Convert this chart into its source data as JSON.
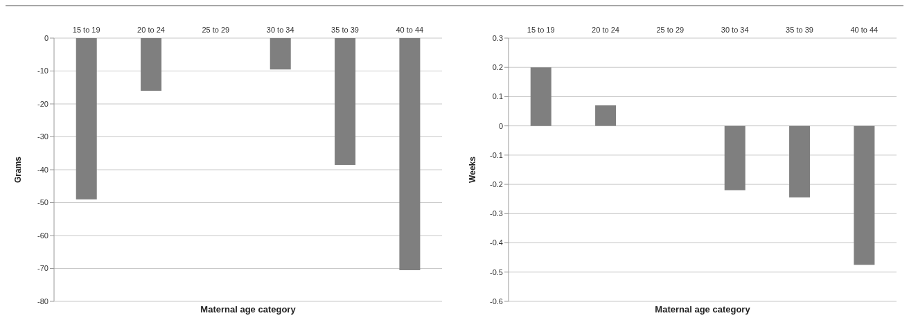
{
  "chart_data": [
    {
      "type": "bar",
      "categories": [
        "15 to 19",
        "20 to 24",
        "25 to 29",
        "30 to 34",
        "35 to 39",
        "40 to 44"
      ],
      "values": [
        -49,
        -16,
        0,
        -9.5,
        -38.5,
        -70.5
      ],
      "color": "#7f7f7f",
      "ylim": [
        -80,
        0
      ],
      "yticks": [
        -80,
        -70,
        -60,
        -50,
        -40,
        -30,
        -20,
        -10,
        0
      ],
      "ylabel": "Grams",
      "xlabel": "Maternal age category",
      "grid": "y"
    },
    {
      "type": "bar",
      "categories": [
        "15 to 19",
        "20 to 24",
        "25 to 29",
        "30 to 34",
        "35 to 39",
        "40 to 44"
      ],
      "values": [
        0.2,
        0.07,
        0,
        -0.22,
        -0.245,
        -0.475
      ],
      "color": "#7f7f7f",
      "ylim": [
        -0.6,
        0.3
      ],
      "yticks": [
        -0.6,
        -0.5,
        -0.4,
        -0.3,
        -0.2,
        -0.1,
        0,
        0.1,
        0.2,
        0.3
      ],
      "ylabel": "Weeks",
      "xlabel": "Maternal age category",
      "grid": "y"
    }
  ]
}
